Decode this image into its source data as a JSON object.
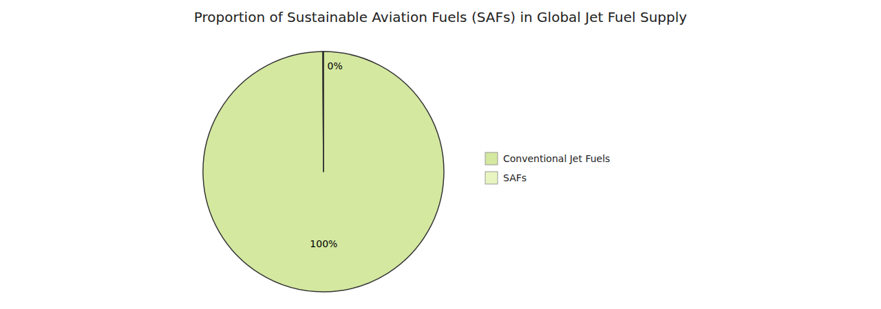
{
  "chart_data": {
    "type": "pie",
    "title": "Proportion of Sustainable Aviation Fuels (SAFs) in Global Jet Fuel Supply",
    "categories": [
      "Conventional Jet Fuels",
      "SAFs"
    ],
    "values": [
      99.9,
      0.1
    ],
    "value_labels": [
      "100%",
      "0%"
    ],
    "colors": [
      "#d4e8a0",
      "#e8f5c0"
    ],
    "data_labels": true,
    "legend": "right"
  }
}
